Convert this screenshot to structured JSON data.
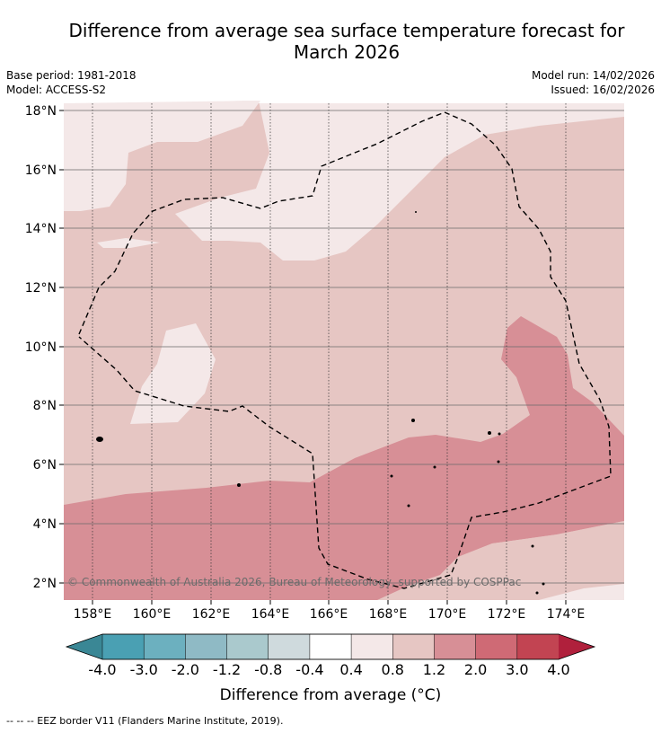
{
  "title_line1": "Difference from average sea surface temperature forecast for",
  "title_line2": "March 2026",
  "meta": {
    "base_period": "Base period: 1981-2018",
    "model": "Model: ACCESS-S2",
    "model_run": "Model run: 14/02/2026",
    "issued": "Issued: 16/02/2026"
  },
  "map": {
    "lon_ticks": [
      "158°E",
      "160°E",
      "162°E",
      "164°E",
      "166°E",
      "168°E",
      "170°E",
      "172°E",
      "174°E"
    ],
    "lat_ticks": [
      "18°N",
      "16°N",
      "14°N",
      "12°N",
      "10°N",
      "8°N",
      "6°N",
      "4°N",
      "2°N"
    ],
    "copyright": "© Commonwealth of Australia 2026, Bureau of Meteorology, supported by COSPPac"
  },
  "colorbar": {
    "labels": [
      "-4.0",
      "-3.0",
      "-2.0",
      "-1.2",
      "-0.8",
      "-0.4",
      "0.4",
      "0.8",
      "1.2",
      "2.0",
      "3.0",
      "4.0"
    ],
    "colors": [
      "#4aa0b3",
      "#6cb0bf",
      "#8fbac5",
      "#aac9cd",
      "#cfdadd",
      "#ffffff",
      "#f4e8e8",
      "#e6c6c3",
      "#d78f96",
      "#cf6a75",
      "#c24452"
    ],
    "under_color": "#3a8795",
    "over_color": "#b0203c",
    "title": "Difference from average (°C)"
  },
  "footer": "--  --  -- EEZ border V11 (Flanders Marine Institute, 2019)."
}
